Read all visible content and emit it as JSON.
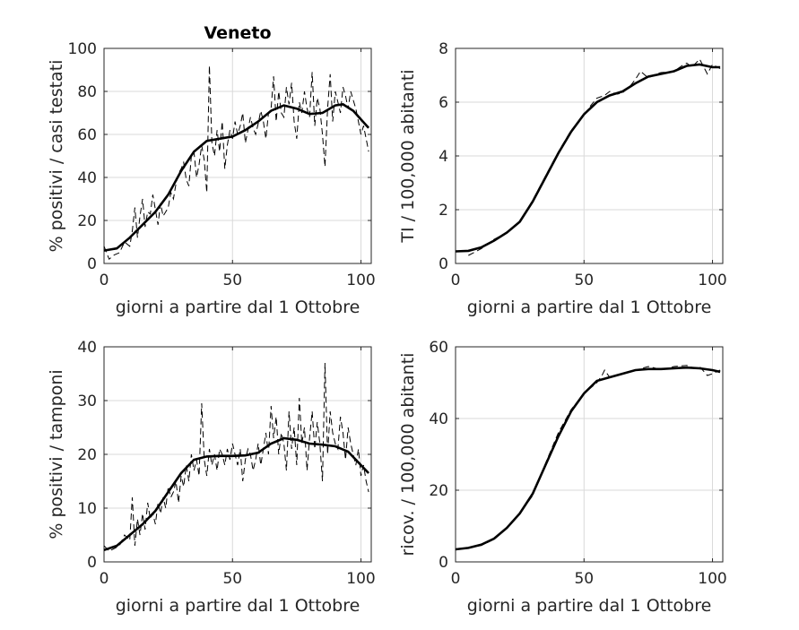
{
  "figure": {
    "title": "Veneto"
  },
  "chart_data": [
    {
      "type": "line",
      "title": "Veneto",
      "xlabel": "giorni a partire dal 1 Ottobre",
      "ylabel": "% positivi / casi testati",
      "xlim": [
        0,
        104
      ],
      "ylim": [
        0,
        100
      ],
      "xticks": [
        0,
        50,
        100
      ],
      "yticks": [
        0,
        20,
        40,
        60,
        80,
        100
      ],
      "grid": true,
      "series": [
        {
          "style": "smooth",
          "x": [
            0,
            5,
            10,
            15,
            20,
            25,
            30,
            35,
            40,
            45,
            50,
            55,
            60,
            65,
            70,
            75,
            80,
            85,
            90,
            93,
            97,
            100,
            103
          ],
          "y": [
            6,
            7,
            12,
            18,
            24,
            32,
            43,
            52,
            57,
            58,
            59,
            62,
            66,
            71,
            73.5,
            72,
            69.5,
            70,
            73.5,
            74,
            71,
            67,
            63
          ]
        },
        {
          "style": "raw",
          "x": [
            0,
            2,
            4,
            6,
            8,
            10,
            11,
            12,
            13,
            14,
            15,
            16,
            17,
            18,
            19,
            20,
            21,
            22,
            23,
            24,
            25,
            26,
            27,
            28,
            29,
            30,
            31,
            32,
            33,
            34,
            35,
            36,
            37,
            38,
            39,
            40,
            41,
            42,
            43,
            44,
            45,
            46,
            47,
            48,
            49,
            50,
            51,
            52,
            53,
            54,
            55,
            56,
            57,
            58,
            59,
            60,
            61,
            62,
            63,
            64,
            65,
            66,
            67,
            68,
            69,
            70,
            71,
            72,
            73,
            74,
            75,
            76,
            77,
            78,
            79,
            80,
            81,
            82,
            83,
            84,
            85,
            86,
            87,
            88,
            89,
            90,
            91,
            92,
            93,
            94,
            95,
            96,
            97,
            98,
            99,
            100,
            101,
            102,
            103
          ],
          "y": [
            8,
            2,
            4,
            5,
            10,
            8,
            15,
            26,
            12,
            22,
            30,
            17,
            24,
            23,
            32,
            25,
            18,
            28,
            22,
            24,
            26,
            33,
            30,
            37,
            42,
            44,
            47,
            39,
            36,
            50,
            52,
            40,
            46,
            55,
            48,
            33,
            92,
            56,
            50,
            62,
            52,
            66,
            44,
            55,
            62,
            58,
            66,
            60,
            64,
            70,
            56,
            62,
            68,
            63,
            60,
            65,
            71,
            66,
            58,
            70,
            72,
            87,
            66,
            80,
            70,
            68,
            82,
            74,
            84,
            66,
            58,
            75,
            70,
            80,
            72,
            68,
            89,
            64,
            77,
            72,
            60,
            45,
            72,
            88,
            66,
            80,
            75,
            70,
            82,
            78,
            72,
            80,
            76,
            72,
            66,
            60,
            64,
            58,
            52
          ]
        }
      ]
    },
    {
      "type": "line",
      "xlabel": "giorni a partire dal 1 Ottobre",
      "ylabel": "TI / 100,000 abitanti",
      "xlim": [
        0,
        104
      ],
      "ylim": [
        0,
        8
      ],
      "xticks": [
        0,
        50,
        100
      ],
      "yticks": [
        0,
        2,
        4,
        6,
        8
      ],
      "grid": true,
      "series": [
        {
          "style": "smooth",
          "x": [
            0,
            5,
            10,
            15,
            20,
            25,
            30,
            35,
            40,
            45,
            50,
            55,
            60,
            65,
            70,
            75,
            80,
            85,
            90,
            95,
            100,
            103
          ],
          "y": [
            0.45,
            0.47,
            0.6,
            0.85,
            1.15,
            1.55,
            2.3,
            3.2,
            4.1,
            4.9,
            5.55,
            6.0,
            6.25,
            6.4,
            6.7,
            6.95,
            7.05,
            7.15,
            7.35,
            7.4,
            7.3,
            7.3
          ]
        },
        {
          "style": "raw",
          "x": [
            5,
            10,
            15,
            20,
            25,
            30,
            35,
            40,
            45,
            50,
            52,
            55,
            58,
            60,
            63,
            65,
            68,
            70,
            72,
            75,
            78,
            80,
            85,
            88,
            90,
            92,
            95,
            98,
            100,
            103
          ],
          "y": [
            0.3,
            0.55,
            0.9,
            1.15,
            1.55,
            2.35,
            3.25,
            4.15,
            4.95,
            5.5,
            5.8,
            6.15,
            6.25,
            6.4,
            6.3,
            6.35,
            6.6,
            6.85,
            7.15,
            6.9,
            7.05,
            7.1,
            7.15,
            7.35,
            7.45,
            7.3,
            7.6,
            7.05,
            7.4,
            7.25
          ]
        }
      ]
    },
    {
      "type": "line",
      "xlabel": "giorni a partire dal 1 Ottobre",
      "ylabel": "% positivi / tamponi",
      "xlim": [
        0,
        104
      ],
      "ylim": [
        0,
        40
      ],
      "xticks": [
        0,
        50,
        100
      ],
      "yticks": [
        0,
        10,
        20,
        30,
        40
      ],
      "grid": true,
      "series": [
        {
          "style": "smooth",
          "x": [
            0,
            5,
            10,
            15,
            20,
            25,
            30,
            35,
            40,
            45,
            50,
            55,
            60,
            65,
            70,
            75,
            80,
            85,
            90,
            95,
            100,
            103
          ],
          "y": [
            2.2,
            3,
            5,
            7,
            9.5,
            13,
            16.5,
            19,
            19.6,
            19.7,
            19.7,
            19.8,
            20.3,
            22,
            23,
            22.7,
            22,
            21.8,
            21.5,
            20.5,
            18,
            16.5
          ]
        },
        {
          "style": "raw",
          "x": [
            0,
            2,
            4,
            6,
            8,
            10,
            11,
            12,
            13,
            14,
            15,
            16,
            17,
            18,
            19,
            20,
            21,
            22,
            23,
            24,
            25,
            26,
            27,
            28,
            29,
            30,
            31,
            32,
            33,
            34,
            35,
            36,
            37,
            38,
            39,
            40,
            41,
            42,
            43,
            44,
            45,
            46,
            47,
            48,
            49,
            50,
            51,
            52,
            53,
            54,
            55,
            56,
            57,
            58,
            59,
            60,
            61,
            62,
            63,
            64,
            65,
            66,
            67,
            68,
            69,
            70,
            71,
            72,
            73,
            74,
            75,
            76,
            77,
            78,
            79,
            80,
            81,
            82,
            83,
            84,
            85,
            86,
            87,
            88,
            89,
            90,
            91,
            92,
            93,
            94,
            95,
            96,
            97,
            98,
            99,
            100,
            101,
            102,
            103
          ],
          "y": [
            3,
            2,
            2.5,
            3,
            5,
            4,
            12,
            3,
            8,
            5,
            9,
            6,
            11,
            8,
            9,
            7,
            11,
            9,
            12,
            10,
            14,
            12,
            13,
            15,
            11,
            16,
            14,
            18,
            15,
            20,
            17,
            19,
            16,
            29.5,
            19,
            16,
            21,
            18,
            20,
            17,
            21,
            20,
            18,
            21,
            19,
            22,
            20,
            18,
            21,
            15,
            19,
            21,
            20,
            17,
            19,
            22,
            18,
            21,
            24,
            20,
            29,
            23,
            27,
            20,
            24,
            22,
            17,
            28,
            21,
            25,
            18,
            30.5,
            22,
            25,
            17,
            23,
            28,
            21,
            26,
            22,
            15,
            37,
            20,
            28,
            24,
            22,
            21,
            27,
            24,
            19,
            25,
            22,
            20,
            18,
            21,
            16,
            18,
            15,
            13
          ]
        }
      ]
    },
    {
      "type": "line",
      "xlabel": "giorni a partire dal 1 Ottobre",
      "ylabel": "ricov. / 100,000 abitanti",
      "xlim": [
        0,
        104
      ],
      "ylim": [
        0,
        60
      ],
      "xticks": [
        0,
        50,
        100
      ],
      "yticks": [
        0,
        20,
        40,
        60
      ],
      "grid": true,
      "series": [
        {
          "style": "smooth",
          "x": [
            0,
            5,
            10,
            15,
            20,
            25,
            30,
            35,
            40,
            45,
            50,
            55,
            60,
            65,
            70,
            75,
            80,
            85,
            90,
            95,
            100,
            103
          ],
          "y": [
            3.5,
            3.9,
            4.8,
            6.5,
            9.5,
            13.5,
            19,
            27,
            35,
            42,
            47,
            50.5,
            51.5,
            52.5,
            53.5,
            53.8,
            53.8,
            54,
            54.2,
            54,
            53.5,
            53
          ]
        },
        {
          "style": "raw",
          "x": [
            5,
            10,
            15,
            20,
            25,
            30,
            35,
            40,
            45,
            50,
            55,
            57,
            58,
            60,
            65,
            70,
            75,
            78,
            80,
            85,
            90,
            93,
            95,
            98,
            100,
            103
          ],
          "y": [
            3.8,
            4.6,
            6.3,
            9.3,
            13.5,
            18.5,
            27.5,
            36,
            42.5,
            47,
            50,
            52,
            53.5,
            51.5,
            52.5,
            53.5,
            54.5,
            54,
            53.5,
            54.5,
            54.8,
            54,
            54.5,
            52,
            52.5,
            53.5
          ]
        }
      ]
    }
  ]
}
